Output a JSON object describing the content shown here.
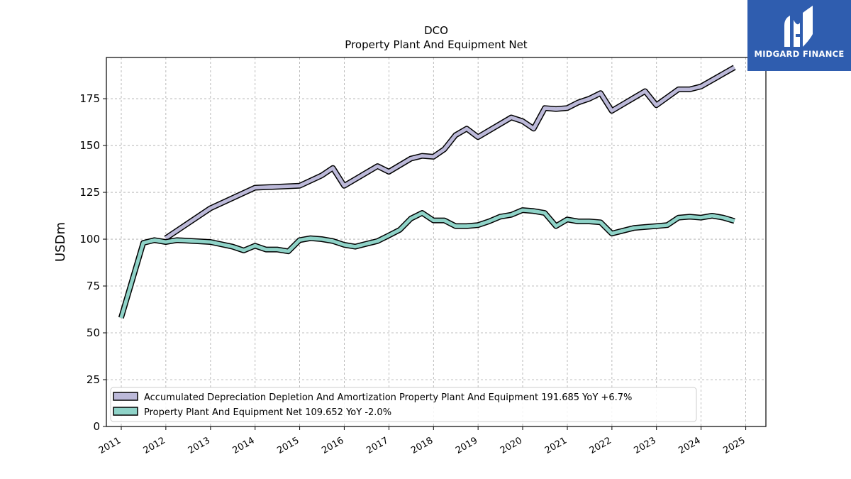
{
  "chart_data": {
    "type": "line",
    "title": "DCO",
    "subtitle": "Property Plant And Equipment Net",
    "xlabel": "",
    "ylabel": "USDm",
    "ylim": [
      0,
      197
    ],
    "yticks": [
      0,
      25,
      50,
      75,
      100,
      125,
      150,
      175
    ],
    "xlim": [
      "2010-09-01",
      "2025-06-15"
    ],
    "xticks": [
      "2011",
      "2012",
      "2013",
      "2014",
      "2015",
      "2016",
      "2017",
      "2018",
      "2019",
      "2020",
      "2021",
      "2022",
      "2023",
      "2024",
      "2025"
    ],
    "grid": true,
    "legend_position": "lower-left",
    "series": [
      {
        "name": "Accumulated Depreciation Depletion And Amortization Property Plant And Equipment",
        "legend_label": "Accumulated Depreciation Depletion And Amortization Property Plant And Equipment  191.685 YoY +6.7%",
        "color": "#bcb9d9",
        "points": [
          [
            "2011-12-31",
            100.5
          ],
          [
            "2012-12-31",
            116.5
          ],
          [
            "2013-12-31",
            127.5
          ],
          [
            "2014-12-31",
            128.5
          ],
          [
            "2015-06-30",
            134.0
          ],
          [
            "2015-09-30",
            138.0
          ],
          [
            "2015-12-31",
            128.5
          ],
          [
            "2016-09-30",
            139.0
          ],
          [
            "2016-12-31",
            136.0
          ],
          [
            "2017-06-30",
            143.0
          ],
          [
            "2017-09-30",
            144.5
          ],
          [
            "2017-12-31",
            144.0
          ],
          [
            "2018-03-31",
            148.0
          ],
          [
            "2018-06-30",
            155.5
          ],
          [
            "2018-09-30",
            159.0
          ],
          [
            "2018-12-31",
            154.5
          ],
          [
            "2019-09-30",
            165.0
          ],
          [
            "2019-12-31",
            163.0
          ],
          [
            "2020-03-31",
            159.0
          ],
          [
            "2020-06-30",
            170.0
          ],
          [
            "2020-09-30",
            169.5
          ],
          [
            "2020-12-31",
            170.0
          ],
          [
            "2021-03-31",
            173.0
          ],
          [
            "2021-06-30",
            175.0
          ],
          [
            "2021-09-30",
            178.0
          ],
          [
            "2021-12-31",
            168.5
          ],
          [
            "2022-09-30",
            179.0
          ],
          [
            "2022-12-31",
            171.5
          ],
          [
            "2023-06-30",
            180.0
          ],
          [
            "2023-09-30",
            180.0
          ],
          [
            "2023-12-31",
            181.5
          ],
          [
            "2024-09-30",
            191.7
          ]
        ]
      },
      {
        "name": "Property Plant And Equipment Net",
        "legend_label": "Property Plant And Equipment Net  109.652 YoY -2.0%",
        "color": "#8fd3c8",
        "points": [
          [
            "2010-12-31",
            58.0
          ],
          [
            "2011-06-30",
            98.0
          ],
          [
            "2011-09-30",
            99.5
          ],
          [
            "2011-12-31",
            98.5
          ],
          [
            "2012-03-31",
            99.5
          ],
          [
            "2012-12-31",
            98.5
          ],
          [
            "2013-06-30",
            96.0
          ],
          [
            "2013-09-30",
            94.0
          ],
          [
            "2013-12-31",
            96.5
          ],
          [
            "2014-03-31",
            94.5
          ],
          [
            "2014-06-30",
            94.5
          ],
          [
            "2014-09-30",
            93.5
          ],
          [
            "2014-12-31",
            99.5
          ],
          [
            "2015-03-31",
            100.5
          ],
          [
            "2015-06-30",
            100.0
          ],
          [
            "2015-09-30",
            99.0
          ],
          [
            "2015-12-31",
            97.0
          ],
          [
            "2016-03-31",
            96.0
          ],
          [
            "2016-06-30",
            97.5
          ],
          [
            "2016-09-30",
            99.0
          ],
          [
            "2016-12-31",
            102.0
          ],
          [
            "2017-03-31",
            105.0
          ],
          [
            "2017-06-30",
            111.0
          ],
          [
            "2017-09-30",
            114.0
          ],
          [
            "2017-12-31",
            110.0
          ],
          [
            "2018-03-31",
            110.0
          ],
          [
            "2018-06-30",
            107.0
          ],
          [
            "2018-09-30",
            107.0
          ],
          [
            "2018-12-31",
            107.5
          ],
          [
            "2019-03-31",
            109.5
          ],
          [
            "2019-06-30",
            112.0
          ],
          [
            "2019-09-30",
            113.0
          ],
          [
            "2019-12-31",
            115.5
          ],
          [
            "2020-03-31",
            115.0
          ],
          [
            "2020-06-30",
            114.0
          ],
          [
            "2020-09-30",
            107.0
          ],
          [
            "2020-12-31",
            110.5
          ],
          [
            "2021-03-31",
            109.5
          ],
          [
            "2021-06-30",
            109.5
          ],
          [
            "2021-09-30",
            109.0
          ],
          [
            "2021-12-31",
            103.0
          ],
          [
            "2022-06-30",
            106.0
          ],
          [
            "2022-09-30",
            106.5
          ],
          [
            "2022-12-31",
            107.0
          ],
          [
            "2023-03-31",
            107.5
          ],
          [
            "2023-06-30",
            111.5
          ],
          [
            "2023-09-30",
            112.0
          ],
          [
            "2023-12-31",
            111.5
          ],
          [
            "2024-03-31",
            112.5
          ],
          [
            "2024-06-30",
            111.5
          ],
          [
            "2024-09-30",
            109.7
          ]
        ]
      }
    ]
  },
  "logo": {
    "text": "MIDGARD FINANCE",
    "color": "#2f5daf"
  }
}
